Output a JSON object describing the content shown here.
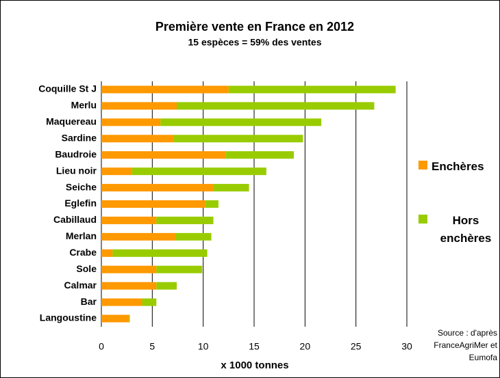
{
  "chart_data": {
    "type": "stacked-barh",
    "title": "Première vente en France en 2012",
    "subtitle": "15 espèces = 59% des ventes",
    "x_label": "x 1000 tonnes",
    "source": "Source : d'après FranceAgriMer et Eumofa",
    "categories": [
      "Coquille St J",
      "Merlu",
      "Maquereau",
      "Sardine",
      "Baudroie",
      "Lieu noir",
      "Seiche",
      "Eglefin",
      "Cabillaud",
      "Merlan",
      "Crabe",
      "Sole",
      "Calmar",
      "Bar",
      "Langoustine"
    ],
    "series": [
      {
        "name": "Enchères",
        "color": "#ff9900",
        "values": [
          12.5,
          7.4,
          5.8,
          7.1,
          12.2,
          3.0,
          11.0,
          10.2,
          5.4,
          7.3,
          1.1,
          5.4,
          5.4,
          4.0,
          2.7
        ]
      },
      {
        "name": "Hors enchères",
        "color": "#99cc00",
        "values": [
          16.4,
          19.4,
          15.8,
          12.7,
          6.7,
          13.2,
          3.5,
          1.3,
          5.6,
          3.5,
          9.3,
          4.5,
          2.0,
          1.4,
          0.1
        ]
      }
    ],
    "xlim": [
      0,
      30
    ],
    "xticks": [
      0,
      5,
      10,
      15,
      20,
      25,
      30
    ],
    "grid": true
  }
}
